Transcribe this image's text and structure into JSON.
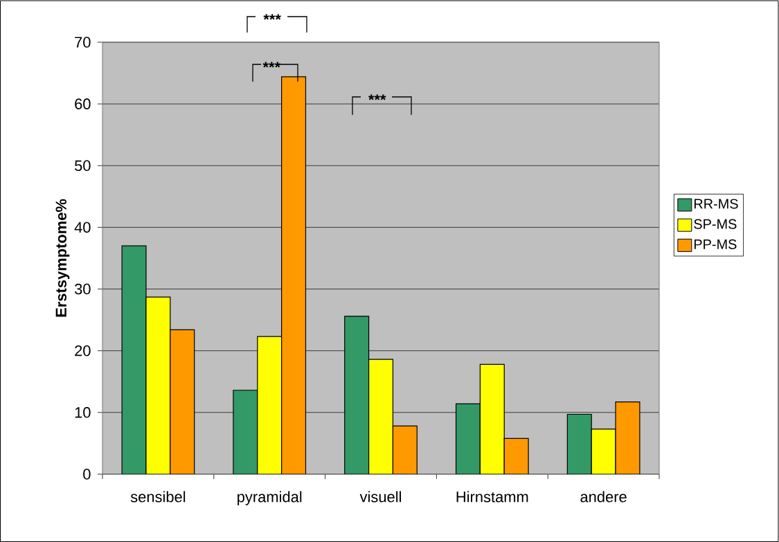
{
  "chart_data": {
    "type": "bar",
    "ylabel": "Erstsymptome%",
    "categories": [
      "sensibel",
      "pyramidal",
      "visuell",
      "Hirnstamm",
      "andere"
    ],
    "series": [
      {
        "name": "RR-MS",
        "color": "#339966",
        "values": [
          37.0,
          13.6,
          25.6,
          11.4,
          9.7
        ]
      },
      {
        "name": "SP-MS",
        "color": "#ffff00",
        "values": [
          28.7,
          22.3,
          18.6,
          17.8,
          7.3
        ]
      },
      {
        "name": "PP-MS",
        "color": "#ff9900",
        "values": [
          23.4,
          64.4,
          7.8,
          5.8,
          11.7
        ]
      }
    ],
    "ylim": [
      0,
      70
    ],
    "yticks": [
      0,
      10,
      20,
      30,
      40,
      50,
      60,
      70
    ],
    "grid": "y",
    "legend": "right",
    "annotations": [
      "***",
      "***",
      "***"
    ]
  }
}
